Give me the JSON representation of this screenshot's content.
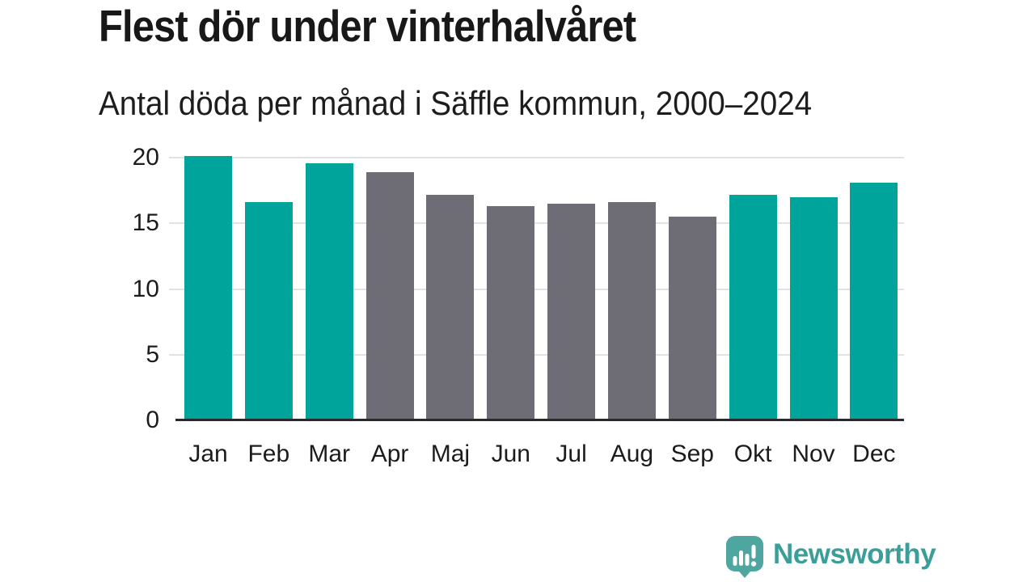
{
  "header": {
    "title": "Flest dör under vinterhalvåret",
    "subtitle": "Antal döda per månad i Säffle kommun, 2000–2024"
  },
  "chart_data": {
    "type": "bar",
    "title": "Flest dör under vinterhalvåret",
    "subtitle": "Antal döda per månad i Säffle kommun, 2000–2024",
    "categories": [
      "Jan",
      "Feb",
      "Mar",
      "Apr",
      "Maj",
      "Jun",
      "Jul",
      "Aug",
      "Sep",
      "Okt",
      "Nov",
      "Dec"
    ],
    "values": [
      20.1,
      16.6,
      19.6,
      18.9,
      17.2,
      16.3,
      16.5,
      16.6,
      15.5,
      17.2,
      17.0,
      18.1
    ],
    "bar_colors": [
      "#00A49A",
      "#00A49A",
      "#00A49A",
      "#6E6C74",
      "#6E6C74",
      "#6E6C74",
      "#6E6C74",
      "#6E6C74",
      "#6E6C74",
      "#00A49A",
      "#00A49A",
      "#00A49A"
    ],
    "highlighted_months": [
      "Jan",
      "Feb",
      "Mar",
      "Okt",
      "Nov",
      "Dec"
    ],
    "xlabel": "",
    "ylabel": "",
    "ylim": [
      0,
      20
    ],
    "yticks": [
      0,
      5,
      10,
      15,
      20
    ],
    "grid": "horizontal",
    "legend": "none",
    "colors": {
      "highlight": "#00A49A",
      "default": "#6E6C74",
      "gridline": "#E2E2E4",
      "axis_line": "#2A2A2E",
      "tick_text": "#1C1C1C"
    }
  },
  "footer": {
    "brand": "Newsworthy",
    "logo_icon": "bar-chart-speech-bubble-icon",
    "colors": {
      "logo": "#4FA6A0",
      "text": "#3C9E98"
    }
  }
}
